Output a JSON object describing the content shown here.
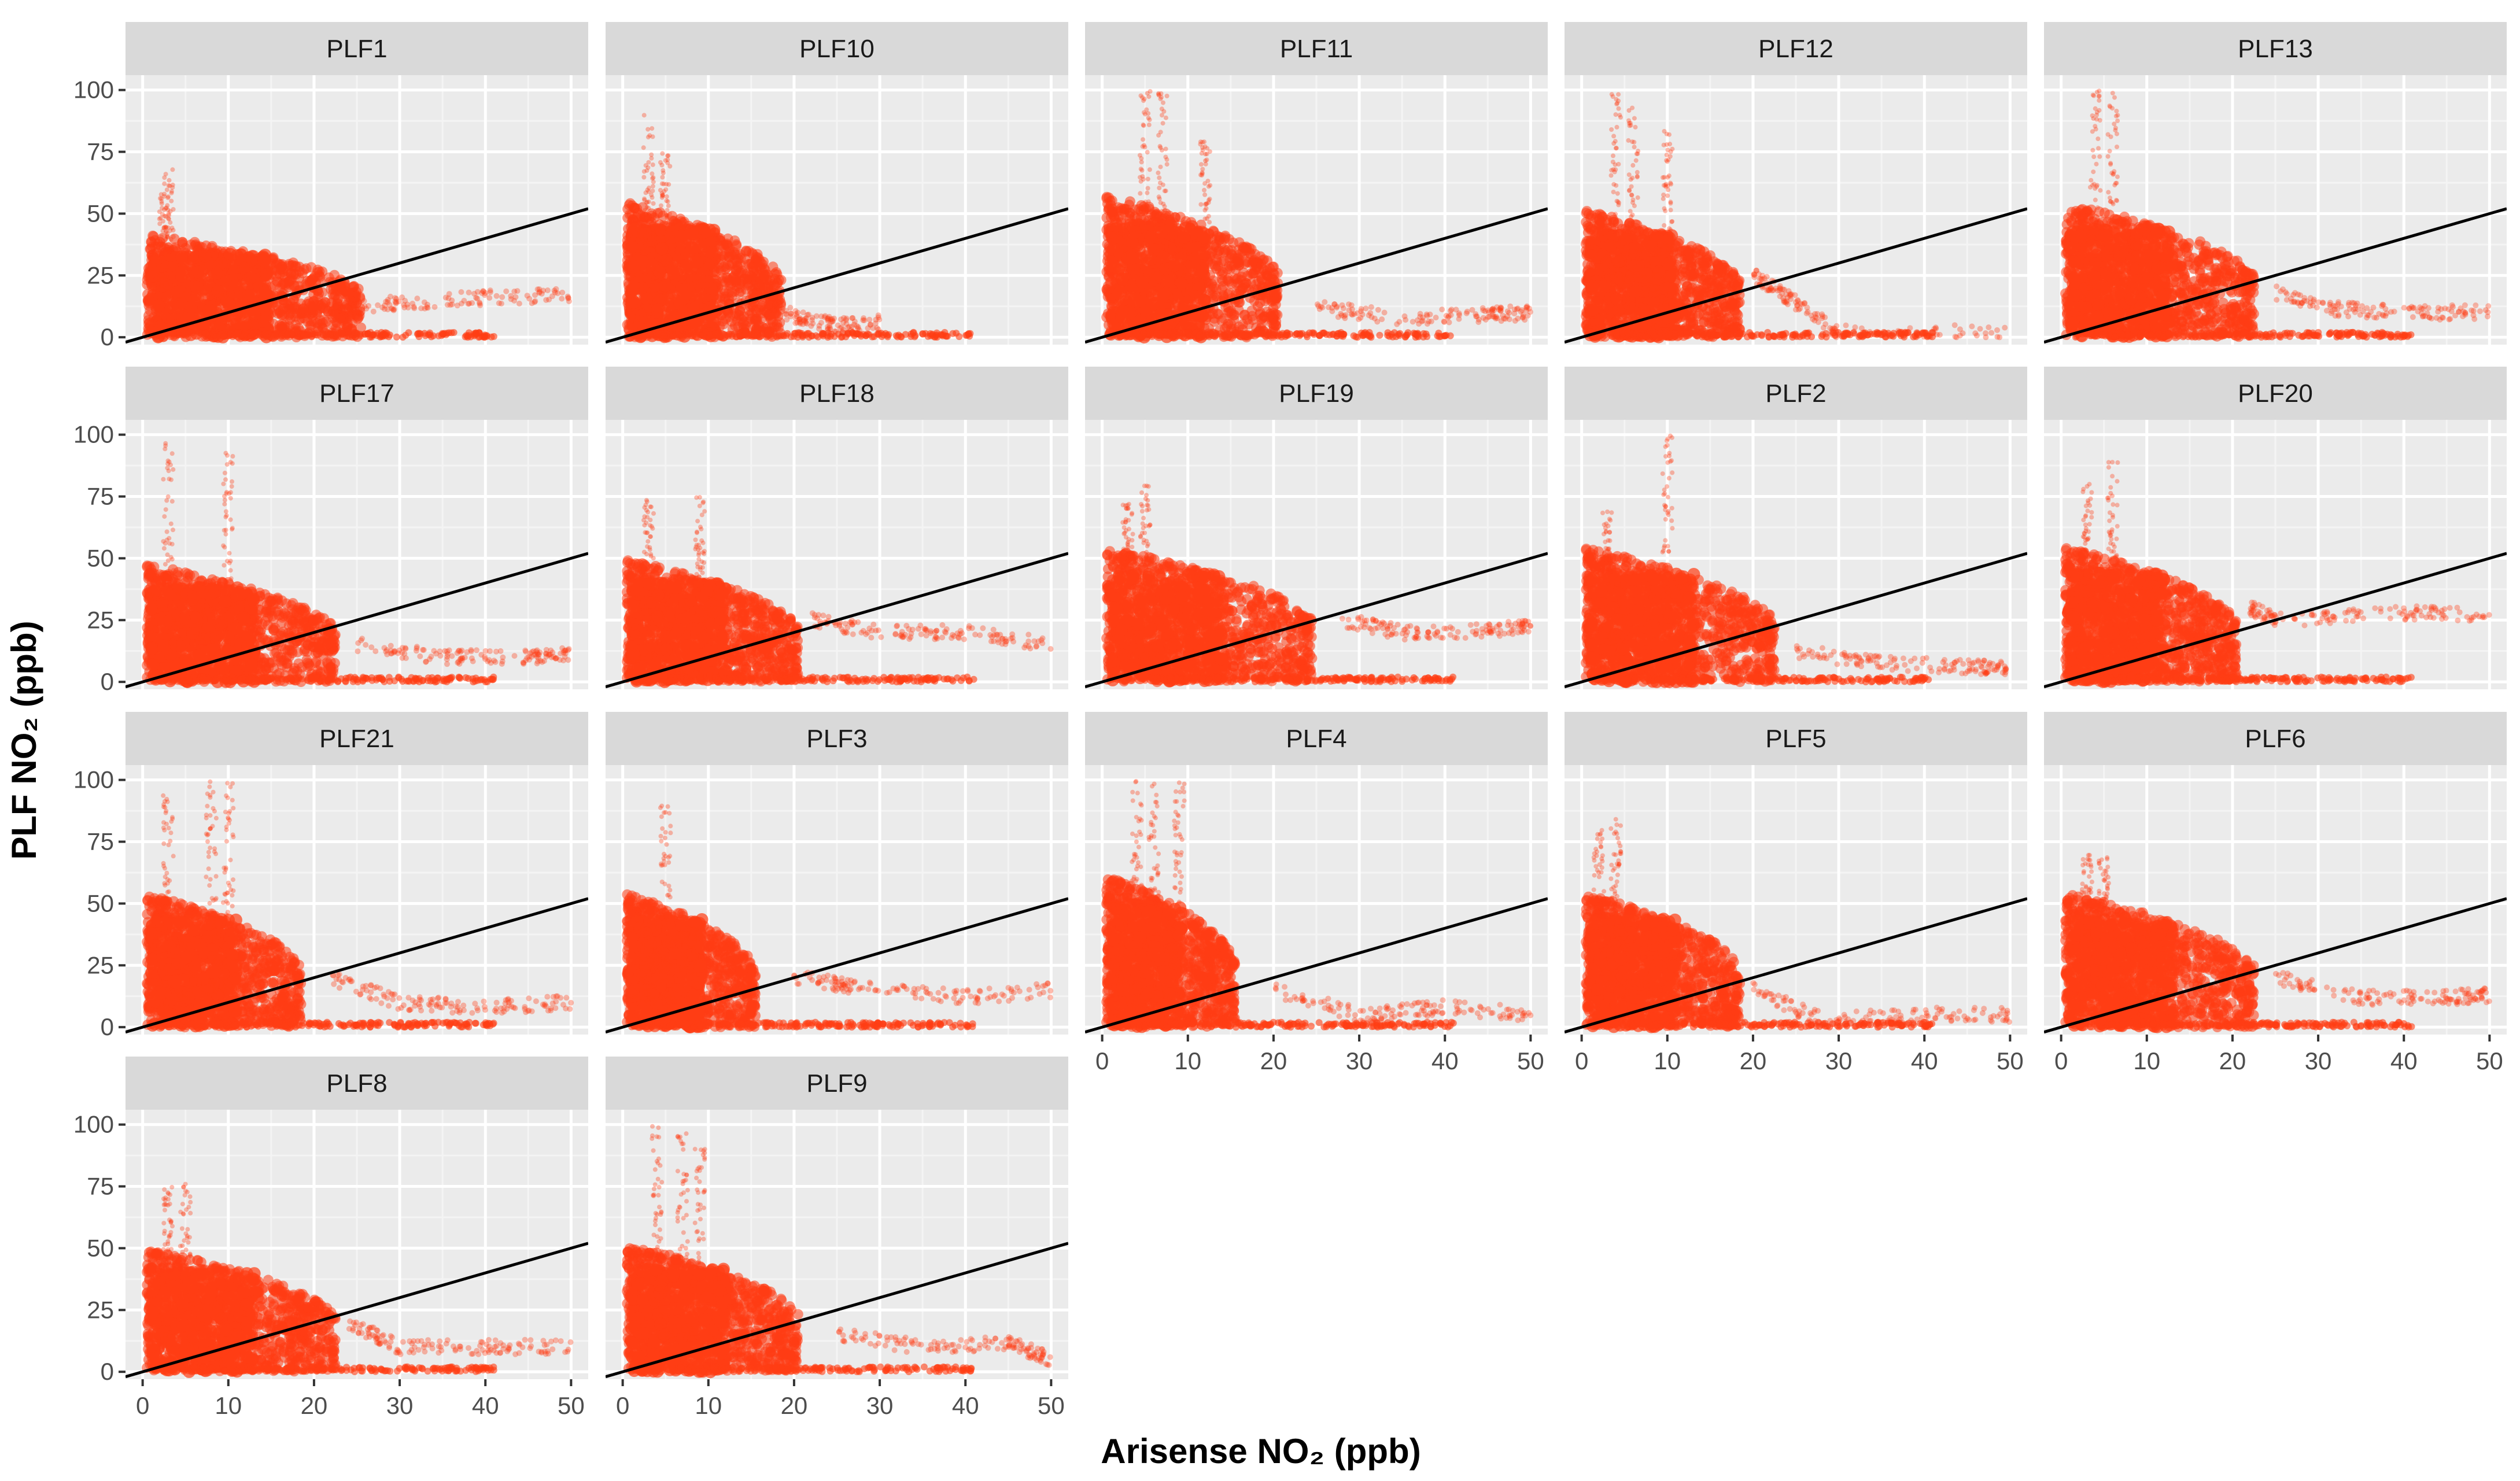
{
  "chart_data": {
    "type": "scatter",
    "layout": "facet-grid",
    "xlabel": "Arisense NO₂ (ppb)",
    "ylabel": "PLF NO₂ (ppb)",
    "xlim": [
      -2,
      52
    ],
    "ylim": [
      -3,
      106
    ],
    "x_ticks": [
      0,
      10,
      20,
      30,
      40,
      50
    ],
    "y_ticks": [
      0,
      25,
      50,
      75,
      100
    ],
    "x_tick_labels": [
      "0",
      "10",
      "20",
      "30",
      "40",
      "50"
    ],
    "y_tick_labels": [
      "0",
      "25",
      "50",
      "75",
      "100"
    ],
    "grid": true,
    "point_color": "#ff3d14",
    "reference_line": {
      "slope": 1,
      "intercept": 0,
      "color": "#000000"
    },
    "panels": [
      {
        "name": "PLF1",
        "cluster": {
          "x_max": 25,
          "y_max": 42
        },
        "tail": [
          [
            22,
            10
          ],
          [
            30,
            14
          ],
          [
            40,
            16
          ],
          [
            50,
            17
          ]
        ],
        "spikes": [
          [
            2.5,
            58
          ],
          [
            3,
            68
          ]
        ]
      },
      {
        "name": "PLF10",
        "cluster": {
          "x_max": 18,
          "y_max": 55
        },
        "tail": [
          [
            15,
            20
          ],
          [
            20,
            8
          ],
          [
            25,
            5
          ],
          [
            30,
            6
          ]
        ],
        "spikes": [
          [
            3,
            92
          ],
          [
            5,
            75
          ]
        ]
      },
      {
        "name": "PLF11",
        "cluster": {
          "x_max": 20,
          "y_max": 58
        },
        "tail": [
          [
            25,
            12
          ],
          [
            35,
            8
          ],
          [
            45,
            9
          ],
          [
            50,
            10
          ]
        ],
        "spikes": [
          [
            5,
            100
          ],
          [
            7,
            100
          ],
          [
            12,
            80
          ]
        ]
      },
      {
        "name": "PLF12",
        "cluster": {
          "x_max": 18,
          "y_max": 52
        },
        "tail": [
          [
            20,
            25
          ],
          [
            25,
            14
          ],
          [
            30,
            2
          ],
          [
            50,
            2
          ]
        ],
        "spikes": [
          [
            4,
            100
          ],
          [
            6,
            95
          ],
          [
            10,
            85
          ]
        ]
      },
      {
        "name": "PLF13",
        "cluster": {
          "x_max": 22,
          "y_max": 55
        },
        "tail": [
          [
            25,
            18
          ],
          [
            30,
            12
          ],
          [
            40,
            10
          ],
          [
            50,
            10
          ]
        ],
        "spikes": [
          [
            4,
            100
          ],
          [
            6,
            100
          ]
        ]
      },
      {
        "name": "PLF17",
        "cluster": {
          "x_max": 22,
          "y_max": 48
        },
        "tail": [
          [
            25,
            15
          ],
          [
            35,
            10
          ],
          [
            45,
            10
          ],
          [
            50,
            12
          ]
        ],
        "spikes": [
          [
            3,
            98
          ],
          [
            10,
            95
          ]
        ]
      },
      {
        "name": "PLF18",
        "cluster": {
          "x_max": 20,
          "y_max": 50
        },
        "tail": [
          [
            22,
            25
          ],
          [
            30,
            20
          ],
          [
            40,
            20
          ],
          [
            50,
            15
          ]
        ],
        "spikes": [
          [
            3,
            75
          ],
          [
            9,
            75
          ]
        ]
      },
      {
        "name": "PLF19",
        "cluster": {
          "x_max": 24,
          "y_max": 55
        },
        "tail": [
          [
            28,
            25
          ],
          [
            35,
            20
          ],
          [
            45,
            21
          ],
          [
            50,
            22
          ]
        ],
        "spikes": [
          [
            3,
            72
          ],
          [
            5,
            80
          ]
        ]
      },
      {
        "name": "PLF2",
        "cluster": {
          "x_max": 22,
          "y_max": 55
        },
        "tail": [
          [
            25,
            12
          ],
          [
            35,
            8
          ],
          [
            45,
            6
          ],
          [
            50,
            6
          ]
        ],
        "spikes": [
          [
            3,
            70
          ],
          [
            10,
            100
          ]
        ]
      },
      {
        "name": "PLF20",
        "cluster": {
          "x_max": 20,
          "y_max": 55
        },
        "tail": [
          [
            22,
            30
          ],
          [
            25,
            25
          ],
          [
            40,
            28
          ],
          [
            50,
            27
          ]
        ],
        "spikes": [
          [
            3,
            80
          ],
          [
            6,
            90
          ]
        ]
      },
      {
        "name": "PLF21",
        "cluster": {
          "x_max": 18,
          "y_max": 55
        },
        "tail": [
          [
            22,
            20
          ],
          [
            30,
            10
          ],
          [
            40,
            8
          ],
          [
            50,
            10
          ]
        ],
        "spikes": [
          [
            3,
            95
          ],
          [
            8,
            100
          ],
          [
            10,
            100
          ]
        ]
      },
      {
        "name": "PLF3",
        "cluster": {
          "x_max": 15,
          "y_max": 55
        },
        "tail": [
          [
            20,
            20
          ],
          [
            30,
            15
          ],
          [
            40,
            12
          ],
          [
            50,
            15
          ]
        ],
        "spikes": [
          [
            5,
            90
          ]
        ]
      },
      {
        "name": "PLF4",
        "cluster": {
          "x_max": 15,
          "y_max": 62
        },
        "tail": [
          [
            20,
            15
          ],
          [
            30,
            5
          ],
          [
            40,
            8
          ],
          [
            50,
            5
          ]
        ],
        "spikes": [
          [
            4,
            100
          ],
          [
            6,
            100
          ],
          [
            9,
            100
          ]
        ]
      },
      {
        "name": "PLF5",
        "cluster": {
          "x_max": 18,
          "y_max": 55
        },
        "tail": [
          [
            20,
            15
          ],
          [
            28,
            3
          ],
          [
            40,
            5
          ],
          [
            50,
            5
          ]
        ],
        "spikes": [
          [
            2,
            80
          ],
          [
            4,
            85
          ]
        ]
      },
      {
        "name": "PLF6",
        "cluster": {
          "x_max": 22,
          "y_max": 55
        },
        "tail": [
          [
            25,
            20
          ],
          [
            35,
            12
          ],
          [
            45,
            12
          ],
          [
            50,
            13
          ]
        ],
        "spikes": [
          [
            3,
            70
          ],
          [
            5,
            70
          ]
        ]
      },
      {
        "name": "PLF8",
        "cluster": {
          "x_max": 22,
          "y_max": 50
        },
        "tail": [
          [
            24,
            20
          ],
          [
            30,
            10
          ],
          [
            40,
            10
          ],
          [
            50,
            10
          ]
        ],
        "spikes": [
          [
            3,
            75
          ],
          [
            5,
            78
          ]
        ]
      },
      {
        "name": "PLF9",
        "cluster": {
          "x_max": 20,
          "y_max": 52
        },
        "tail": [
          [
            25,
            15
          ],
          [
            35,
            10
          ],
          [
            45,
            12
          ],
          [
            50,
            5
          ]
        ],
        "spikes": [
          [
            4,
            100
          ],
          [
            7,
            100
          ],
          [
            9,
            95
          ]
        ]
      }
    ]
  }
}
